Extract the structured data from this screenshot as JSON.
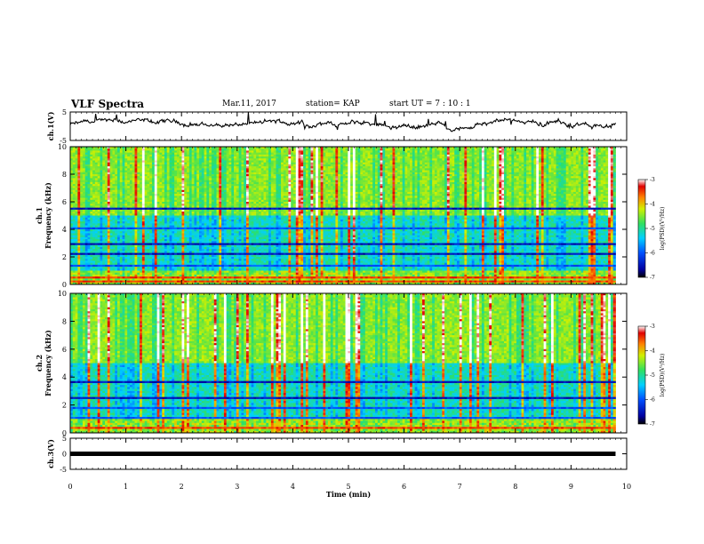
{
  "header": {
    "title": "VLF Spectra",
    "date": "Mar.11, 2017",
    "station": "station= KAP",
    "start": "start  UT =   7 : 10 : 1"
  },
  "chart_data": [
    {
      "type": "line",
      "ylabel": "ch.1(V)",
      "ylim": [
        -5,
        5
      ],
      "yticks": [
        "5",
        "-5"
      ],
      "xlim": [
        0,
        10
      ],
      "description_of_series": "noisy voltage trace fluctuating around ~1 V"
    },
    {
      "type": "heatmap",
      "ylabel": "ch.1 Frequency (kHz)",
      "ylim": [
        0,
        10
      ],
      "yticks": [
        "0",
        "2",
        "4",
        "6",
        "8",
        "10"
      ],
      "xlim": [
        0,
        10
      ],
      "colorbar": {
        "label": "log(PSD)(V²/Hz)",
        "range": [
          -7,
          -3
        ],
        "ticks": [
          "-3",
          "-4",
          "-5",
          "-6",
          "-7"
        ]
      },
      "bands": [
        {
          "f": 5.5,
          "level": "-6.5"
        },
        {
          "f": 4.2,
          "level": "-6.0"
        },
        {
          "f": 3.0,
          "level": "-6.5"
        },
        {
          "f": 2.3,
          "level": "-6.5"
        },
        {
          "f": 1.5,
          "level": "-6.0"
        },
        {
          "f": 0.6,
          "level": "-3.5"
        },
        {
          "f": 0.3,
          "level": "-3.5"
        }
      ]
    },
    {
      "type": "heatmap",
      "ylabel": "ch.2 Frequency (kHz)",
      "ylim": [
        0,
        10
      ],
      "yticks": [
        "0",
        "2",
        "4",
        "6",
        "8",
        "10"
      ],
      "xlim": [
        0,
        10
      ],
      "colorbar": {
        "label": "log(PSD)(V²/Hz)",
        "range": [
          -7,
          -3
        ],
        "ticks": [
          "-3",
          "-4",
          "-5",
          "-6",
          "-7"
        ]
      },
      "bands": [
        {
          "f": 3.7,
          "level": "-6.5"
        },
        {
          "f": 2.6,
          "level": "-6.5"
        },
        {
          "f": 1.9,
          "level": "-6.0"
        },
        {
          "f": 1.2,
          "level": "-6.0"
        },
        {
          "f": 0.5,
          "level": "-3.5"
        }
      ]
    },
    {
      "type": "line",
      "ylabel": "ch.3(V)",
      "ylim": [
        -5,
        5
      ],
      "yticks": [
        "5",
        "0",
        "-5"
      ],
      "xlim": [
        0,
        10
      ],
      "xlabel": "Time  (min)",
      "xticks": [
        "0",
        "1",
        "2",
        "3",
        "4",
        "5",
        "6",
        "7",
        "8",
        "9",
        "10"
      ],
      "constant_value": 0
    }
  ]
}
